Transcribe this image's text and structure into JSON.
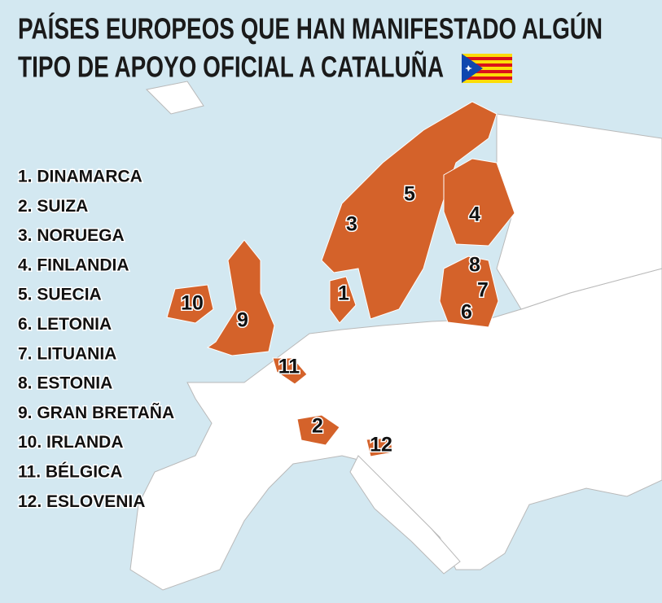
{
  "title": [
    "PAÍSES EUROPEOS QUE HAN MANIFESTADO ALGÚN",
    "TIPO DE APOYO OFICIAL A CATALUÑA"
  ],
  "legend": [
    "1. DINAMARCA",
    "2. SUIZA",
    "3. NORUEGA",
    "4. FINLANDIA",
    "5. SUECIA",
    "6. LETONIA",
    "7. LITUANIA",
    "8. ESTONIA",
    "9. GRAN BRETAÑA",
    "10. IRLANDA",
    "11. BÉLGICA",
    "12. ESLOVENIA"
  ],
  "map_labels": [
    "1",
    "2",
    "3",
    "4",
    "5",
    "6",
    "7",
    "8",
    "9",
    "10",
    "11",
    "12"
  ]
}
